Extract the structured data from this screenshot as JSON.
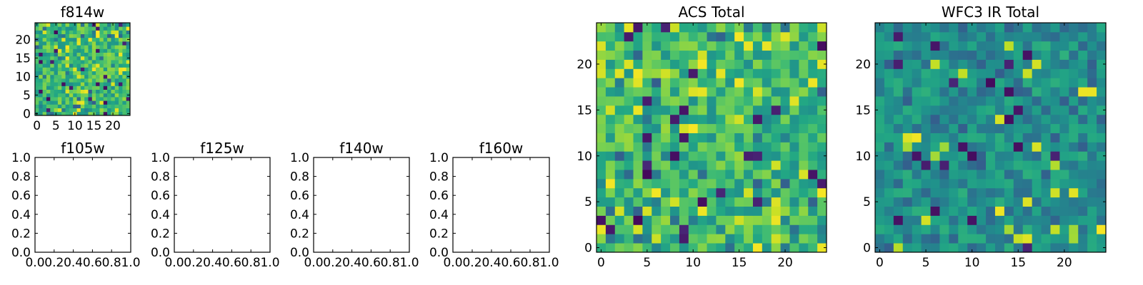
{
  "figure": {
    "background": "#ffffff",
    "colormap": "viridis",
    "colormap_stops": [
      "#440154",
      "#3b528b",
      "#21918c",
      "#5ec962",
      "#fde725"
    ]
  },
  "chart_data": [
    {
      "type": "heatmap",
      "id": "f814w",
      "title": "f814w",
      "grid_size": 25,
      "xlim": [
        -0.5,
        24.5
      ],
      "ylim": [
        -0.5,
        24.5
      ],
      "xticks": [
        0,
        5,
        10,
        15,
        20
      ],
      "xtick_labels": [
        "0",
        "5",
        "10",
        "15",
        "20"
      ],
      "yticks": [
        0,
        5,
        10,
        15,
        20
      ],
      "ytick_labels": [
        "0",
        "5",
        "10",
        "15",
        "20"
      ],
      "value_range": [
        0,
        1
      ],
      "values_note": "25x25 noisy pixel image, mostly green/yellow with scattered dark pixels",
      "seed": 11,
      "value_profile": "noise-bright"
    },
    {
      "type": "empty",
      "id": "f105w",
      "title": "f105w",
      "xlim": [
        0,
        1
      ],
      "ylim": [
        0,
        1
      ],
      "xtick_labels": [
        "0.0",
        "0.2",
        "0.4",
        "0.6",
        "0.8",
        "1.0"
      ],
      "ytick_labels": [
        "0.0",
        "0.2",
        "0.4",
        "0.6",
        "0.8",
        "1.0"
      ]
    },
    {
      "type": "empty",
      "id": "f125w",
      "title": "f125w",
      "xlim": [
        0,
        1
      ],
      "ylim": [
        0,
        1
      ],
      "xtick_labels": [
        "0.0",
        "0.2",
        "0.4",
        "0.6",
        "0.8",
        "1.0"
      ],
      "ytick_labels": [
        "0.0",
        "0.2",
        "0.4",
        "0.6",
        "0.8",
        "1.0"
      ]
    },
    {
      "type": "empty",
      "id": "f140w",
      "title": "f140w",
      "xlim": [
        0,
        1
      ],
      "ylim": [
        0,
        1
      ],
      "xtick_labels": [
        "0.0",
        "0.2",
        "0.4",
        "0.6",
        "0.8",
        "1.0"
      ],
      "ytick_labels": [
        "0.0",
        "0.2",
        "0.4",
        "0.6",
        "0.8",
        "1.0"
      ]
    },
    {
      "type": "empty",
      "id": "f160w",
      "title": "f160w",
      "xlim": [
        0,
        1
      ],
      "ylim": [
        0,
        1
      ],
      "xtick_labels": [
        "0.0",
        "0.2",
        "0.4",
        "0.6",
        "0.8",
        "1.0"
      ],
      "ytick_labels": [
        "0.0",
        "0.2",
        "0.4",
        "0.6",
        "0.8",
        "1.0"
      ]
    },
    {
      "type": "heatmap",
      "id": "acs-total",
      "title": "ACS Total",
      "grid_size": 25,
      "xlim": [
        -0.5,
        24.5
      ],
      "ylim": [
        -0.5,
        24.5
      ],
      "xticks": [
        0,
        5,
        10,
        15,
        20
      ],
      "xtick_labels": [
        "0",
        "5",
        "10",
        "15",
        "20"
      ],
      "yticks": [
        0,
        5,
        10,
        15,
        20
      ],
      "ytick_labels": [
        "0",
        "5",
        "10",
        "15",
        "20"
      ],
      "value_range": [
        0,
        1
      ],
      "values_note": "25x25 noisy pixel image, mostly green/yellow-green with a few dark purple pixels",
      "seed": 23,
      "value_profile": "noise-bright"
    },
    {
      "type": "heatmap",
      "id": "wfc3-ir-total",
      "title": "WFC3 IR Total",
      "grid_size": 25,
      "xlim": [
        -0.5,
        24.5
      ],
      "ylim": [
        -0.5,
        24.5
      ],
      "xticks": [
        0,
        5,
        10,
        15,
        20
      ],
      "xtick_labels": [
        "0",
        "5",
        "10",
        "15",
        "20"
      ],
      "yticks": [
        0,
        5,
        10,
        15,
        20
      ],
      "ytick_labels": [
        "0",
        "5",
        "10",
        "15",
        "20"
      ],
      "value_range": [
        0,
        1
      ],
      "values_note": "25x25 noisy pixel image, mostly teal/blue-green with a few bright yellow blocks and dark pixels",
      "seed": 37,
      "value_profile": "noise-mid"
    }
  ]
}
